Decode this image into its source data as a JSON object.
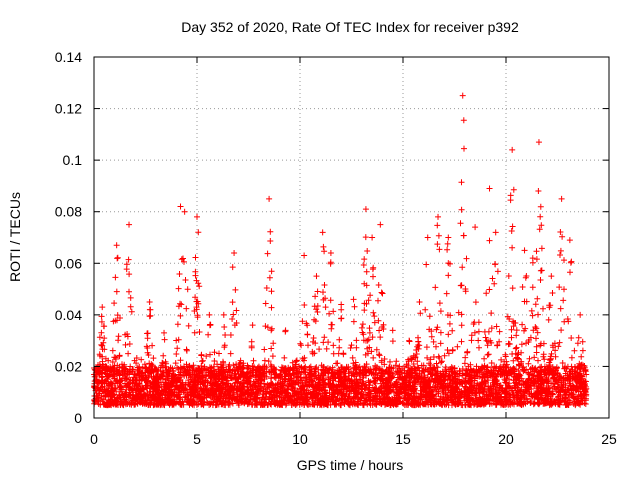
{
  "chart_data": {
    "type": "scatter",
    "title": "Day 352 of 2020, Rate Of TEC Index for receiver p392",
    "xlabel": "GPS time / hours",
    "ylabel": "ROTI / TECUs",
    "xlim": [
      0,
      25
    ],
    "ylim": [
      0,
      0.14
    ],
    "xticks": [
      0,
      5,
      10,
      15,
      20,
      25
    ],
    "yticks": [
      0,
      0.02,
      0.04,
      0.06,
      0.08,
      0.1,
      0.12,
      0.14
    ],
    "xtick_labels": [
      "0",
      "5",
      "10",
      "15",
      "20",
      "25"
    ],
    "ytick_labels": [
      "0",
      "0.02",
      "0.04",
      "0.06",
      "0.08",
      "0.1",
      "0.12",
      "0.14"
    ],
    "grid": true,
    "marker": "+",
    "color": "#ff0000",
    "x_data_range": [
      0,
      23.9
    ],
    "baseline_band": [
      0.005,
      0.02
    ],
    "peaks": [
      {
        "x": 0.4,
        "y": 0.043
      },
      {
        "x": 1.1,
        "y": 0.067
      },
      {
        "x": 1.7,
        "y": 0.075
      },
      {
        "x": 2.7,
        "y": 0.045
      },
      {
        "x": 3.4,
        "y": 0.033
      },
      {
        "x": 4.2,
        "y": 0.082
      },
      {
        "x": 4.4,
        "y": 0.08
      },
      {
        "x": 5.0,
        "y": 0.078
      },
      {
        "x": 5.6,
        "y": 0.04
      },
      {
        "x": 6.3,
        "y": 0.04
      },
      {
        "x": 6.8,
        "y": 0.064
      },
      {
        "x": 7.7,
        "y": 0.036
      },
      {
        "x": 8.5,
        "y": 0.085
      },
      {
        "x": 9.3,
        "y": 0.034
      },
      {
        "x": 10.2,
        "y": 0.063
      },
      {
        "x": 10.8,
        "y": 0.055
      },
      {
        "x": 11.1,
        "y": 0.072
      },
      {
        "x": 11.5,
        "y": 0.064
      },
      {
        "x": 12.0,
        "y": 0.044
      },
      {
        "x": 12.6,
        "y": 0.046
      },
      {
        "x": 13.2,
        "y": 0.081
      },
      {
        "x": 13.5,
        "y": 0.07
      },
      {
        "x": 13.9,
        "y": 0.075
      },
      {
        "x": 14.5,
        "y": 0.034
      },
      {
        "x": 15.3,
        "y": 0.03
      },
      {
        "x": 15.8,
        "y": 0.045
      },
      {
        "x": 16.2,
        "y": 0.07
      },
      {
        "x": 16.7,
        "y": 0.078
      },
      {
        "x": 17.2,
        "y": 0.07
      },
      {
        "x": 17.9,
        "y": 0.125
      },
      {
        "x": 18.5,
        "y": 0.074
      },
      {
        "x": 19.2,
        "y": 0.089
      },
      {
        "x": 19.5,
        "y": 0.072
      },
      {
        "x": 20.3,
        "y": 0.104
      },
      {
        "x": 20.9,
        "y": 0.065
      },
      {
        "x": 21.3,
        "y": 0.062
      },
      {
        "x": 21.6,
        "y": 0.107
      },
      {
        "x": 22.2,
        "y": 0.055
      },
      {
        "x": 22.7,
        "y": 0.085
      },
      {
        "x": 23.1,
        "y": 0.069
      },
      {
        "x": 23.6,
        "y": 0.04
      }
    ]
  }
}
